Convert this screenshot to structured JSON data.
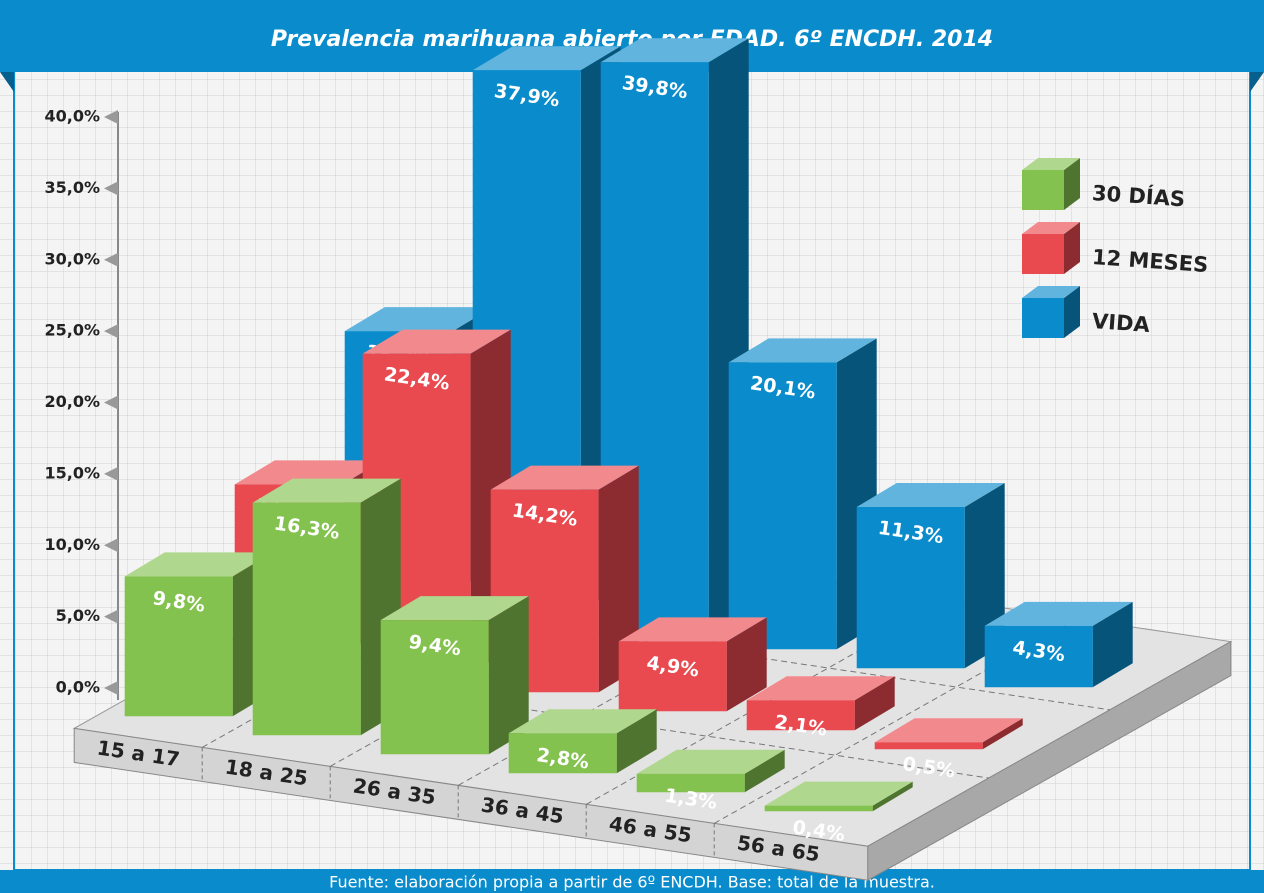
{
  "chart_data": {
    "type": "bar3d",
    "title": "Prevalencia marihuana abierto por EDAD. 6º ENCDH. 2014",
    "source": "Fuente: elaboración propia a partir de 6º ENCDH. Base: total de la muestra.",
    "categories": [
      "15 a 17",
      "18 a 25",
      "26 a 35",
      "36 a 45",
      "46 a 55",
      "56 a 65"
    ],
    "series": [
      {
        "name": "30 DÍAS",
        "color": "#84c24f",
        "values": [
          9.8,
          16.3,
          9.4,
          2.8,
          1.3,
          0.4
        ],
        "value_labels": [
          "9,8%",
          "16,3%",
          "9,4%",
          "2,8%",
          "1,3%",
          "0,4%"
        ]
      },
      {
        "name": "12 MESES",
        "color": "#e94a50",
        "values": [
          11.9,
          22.4,
          14.2,
          4.9,
          2.1,
          0.5
        ],
        "value_labels": [
          "11,9%",
          "22,4%",
          "14,2%",
          "4,9%",
          "2,1%",
          "0,5%"
        ]
      },
      {
        "name": "VIDA",
        "color": "#0a8ccc",
        "values": [
          18.3,
          37.9,
          39.8,
          20.1,
          11.3,
          4.3
        ],
        "value_labels": [
          "18,3%",
          "37,9%",
          "39,8%",
          "20,1%",
          "11,3%",
          "4,3%"
        ]
      }
    ],
    "ylim": [
      0,
      40
    ],
    "yticks": [
      {
        "value": 0,
        "label": "0,0%"
      },
      {
        "value": 5,
        "label": "5,0%"
      },
      {
        "value": 10,
        "label": "10,0%"
      },
      {
        "value": 15,
        "label": "15,0%"
      },
      {
        "value": 20,
        "label": "20,0%"
      },
      {
        "value": 25,
        "label": "25,0%"
      },
      {
        "value": 30,
        "label": "30,0%"
      },
      {
        "value": 35,
        "label": "35,0%"
      },
      {
        "value": 40,
        "label": "40,0%"
      }
    ],
    "legend": "upper right"
  }
}
